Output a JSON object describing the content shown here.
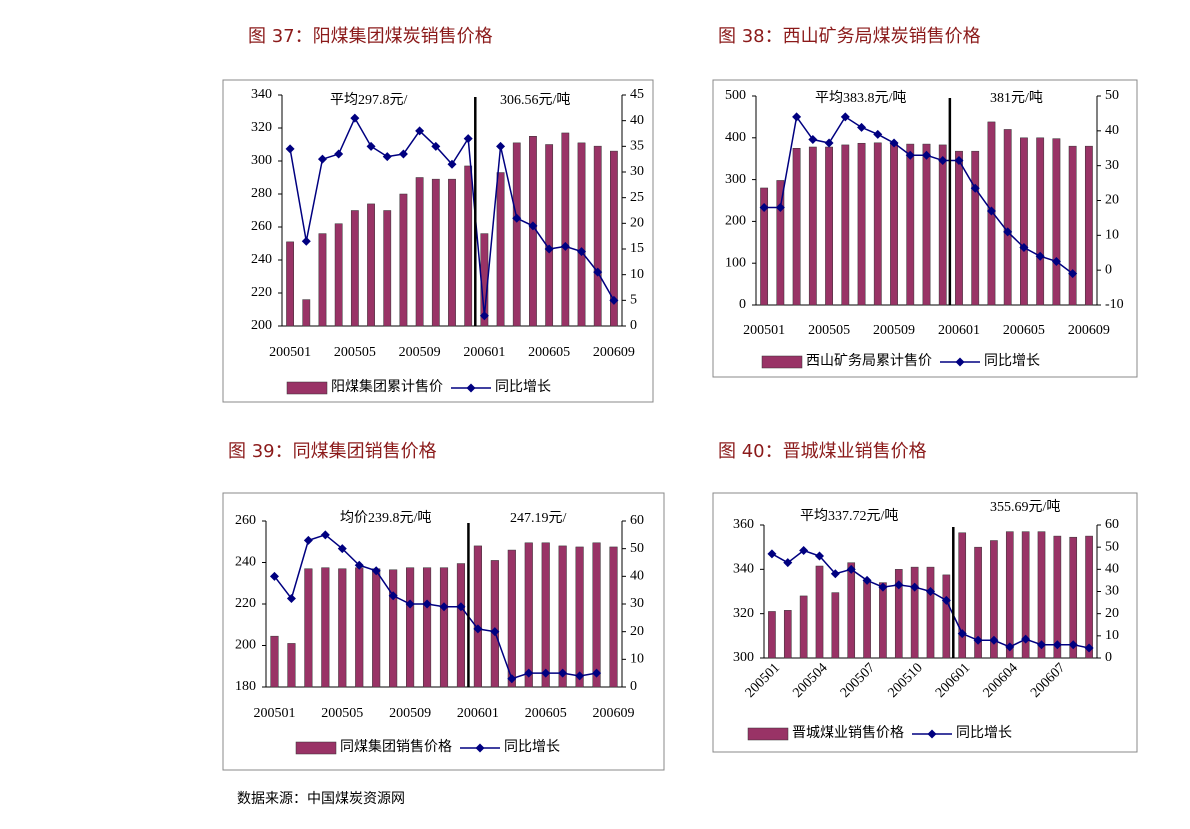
{
  "chart_data": [
    {
      "type": "bar_line",
      "title": "图 37：阳煤集团煤炭销售价格",
      "categories": [
        "200501",
        null,
        null,
        null,
        "200505",
        null,
        null,
        null,
        "200509",
        null,
        null,
        null,
        "200601",
        null,
        null,
        null,
        "200605",
        null,
        null,
        null,
        "200609"
      ],
      "series": [
        {
          "name": "阳煤集团累计售价",
          "type": "bar",
          "color": "#993366",
          "values": [
            251,
            216,
            256,
            262,
            270,
            274,
            270,
            280,
            290,
            289,
            289,
            297,
            256,
            293,
            311,
            315,
            310,
            317,
            311,
            309,
            306
          ]
        },
        {
          "name": "同比增长",
          "type": "line",
          "axis": "y2",
          "color": "#000080",
          "values": [
            34.5,
            16.5,
            32.5,
            33.5,
            40.5,
            35,
            33,
            33.5,
            38,
            35,
            31.5,
            36.5,
            2,
            35,
            21,
            19.5,
            15,
            15.5,
            14.5,
            10.5,
            5
          ]
        }
      ],
      "ylim": [
        200,
        340
      ],
      "yticks": [
        200,
        220,
        240,
        260,
        280,
        300,
        320,
        340
      ],
      "y2lim": [
        0,
        45
      ],
      "y2ticks": [
        0,
        5,
        10,
        15,
        20,
        25,
        30,
        35,
        40,
        45
      ],
      "annotations": [
        "平均297.8元/",
        "306.56元/吨"
      ]
    },
    {
      "type": "bar_line",
      "title": "图 38：西山矿务局煤炭销售价格",
      "categories": [
        "200501",
        null,
        null,
        null,
        "200505",
        null,
        null,
        null,
        "200509",
        null,
        null,
        null,
        "200601",
        null,
        null,
        null,
        "200605",
        null,
        null,
        null,
        "200609"
      ],
      "series": [
        {
          "name": "西山矿务局累计售价",
          "type": "bar",
          "color": "#993366",
          "values": [
            280,
            298,
            375,
            378,
            378,
            383,
            387,
            388,
            388,
            385,
            385,
            383,
            368,
            368,
            438,
            420,
            400,
            400,
            398,
            380,
            380
          ]
        },
        {
          "name": "同比增长",
          "type": "line",
          "axis": "y2",
          "color": "#000080",
          "values": [
            18,
            18,
            44,
            37.5,
            36.5,
            44,
            41,
            39,
            36.5,
            33,
            33,
            31.5,
            31.5,
            23.5,
            17,
            11,
            6.5,
            4,
            2.5,
            -1,
            null
          ]
        }
      ],
      "ylim": [
        0,
        500
      ],
      "yticks": [
        0,
        100,
        200,
        300,
        400,
        500
      ],
      "y2lim": [
        -10,
        50
      ],
      "y2ticks": [
        -10,
        0,
        10,
        20,
        30,
        40,
        50
      ],
      "annotations": [
        "平均383.8元/吨",
        "381元/吨"
      ]
    },
    {
      "type": "bar_line",
      "title": "图 39：同煤集团销售价格",
      "categories": [
        "200501",
        null,
        null,
        null,
        "200505",
        null,
        null,
        null,
        "200509",
        null,
        null,
        null,
        "200601",
        null,
        null,
        null,
        "200605",
        null,
        null,
        null,
        "200609"
      ],
      "series": [
        {
          "name": "同煤集团销售价格",
          "type": "bar",
          "color": "#993366",
          "values": [
            204.5,
            201,
            237,
            237.5,
            237,
            237.5,
            237,
            236.5,
            237.5,
            237.5,
            237.5,
            239.5,
            248,
            241,
            246,
            249.5,
            249.5,
            248,
            247.5,
            249.5,
            247.5
          ]
        },
        {
          "name": "同比增长",
          "type": "line",
          "axis": "y2",
          "color": "#000080",
          "values": [
            40,
            32,
            53,
            55,
            50,
            44,
            42,
            33,
            30,
            30,
            29,
            29,
            21,
            20,
            3,
            5,
            5,
            5,
            4,
            5,
            null
          ]
        }
      ],
      "ylim": [
        180,
        260
      ],
      "yticks": [
        180,
        200,
        220,
        240,
        260
      ],
      "y2lim": [
        0,
        60
      ],
      "y2ticks": [
        0,
        10,
        20,
        30,
        40,
        50,
        60
      ],
      "annotations": [
        "均价239.8元/吨",
        "247.19元/"
      ]
    },
    {
      "type": "bar_line",
      "title": "图 40：晋城煤业销售价格",
      "categories": [
        "200501",
        null,
        null,
        "200504",
        null,
        null,
        "200507",
        null,
        null,
        "200510",
        null,
        null,
        "200601",
        null,
        null,
        "200604",
        null,
        null,
        "200607",
        null,
        null
      ],
      "series": [
        {
          "name": "晋城煤业销售价格",
          "type": "bar",
          "color": "#993366",
          "values": [
            321,
            321.5,
            328,
            341.5,
            329.5,
            343,
            335,
            334,
            340,
            341,
            341,
            337.5,
            356.5,
            350,
            353,
            357,
            357,
            357,
            355,
            354.5,
            355
          ]
        },
        {
          "name": "同比增长",
          "type": "line",
          "axis": "y2",
          "color": "#000080",
          "values": [
            47,
            43,
            48.5,
            46,
            38,
            40,
            35,
            32,
            33,
            32,
            30,
            26,
            11,
            8,
            8,
            5,
            8.5,
            6,
            6,
            6,
            4.5
          ]
        }
      ],
      "ylim": [
        300,
        360
      ],
      "yticks": [
        300,
        320,
        340,
        360
      ],
      "y2lim": [
        0,
        60
      ],
      "y2ticks": [
        0,
        10,
        20,
        30,
        40,
        50,
        60
      ],
      "annotations": [
        "平均337.72元/吨",
        "355.69元/吨"
      ]
    }
  ],
  "source": "数据来源：中国煤炭资源网"
}
